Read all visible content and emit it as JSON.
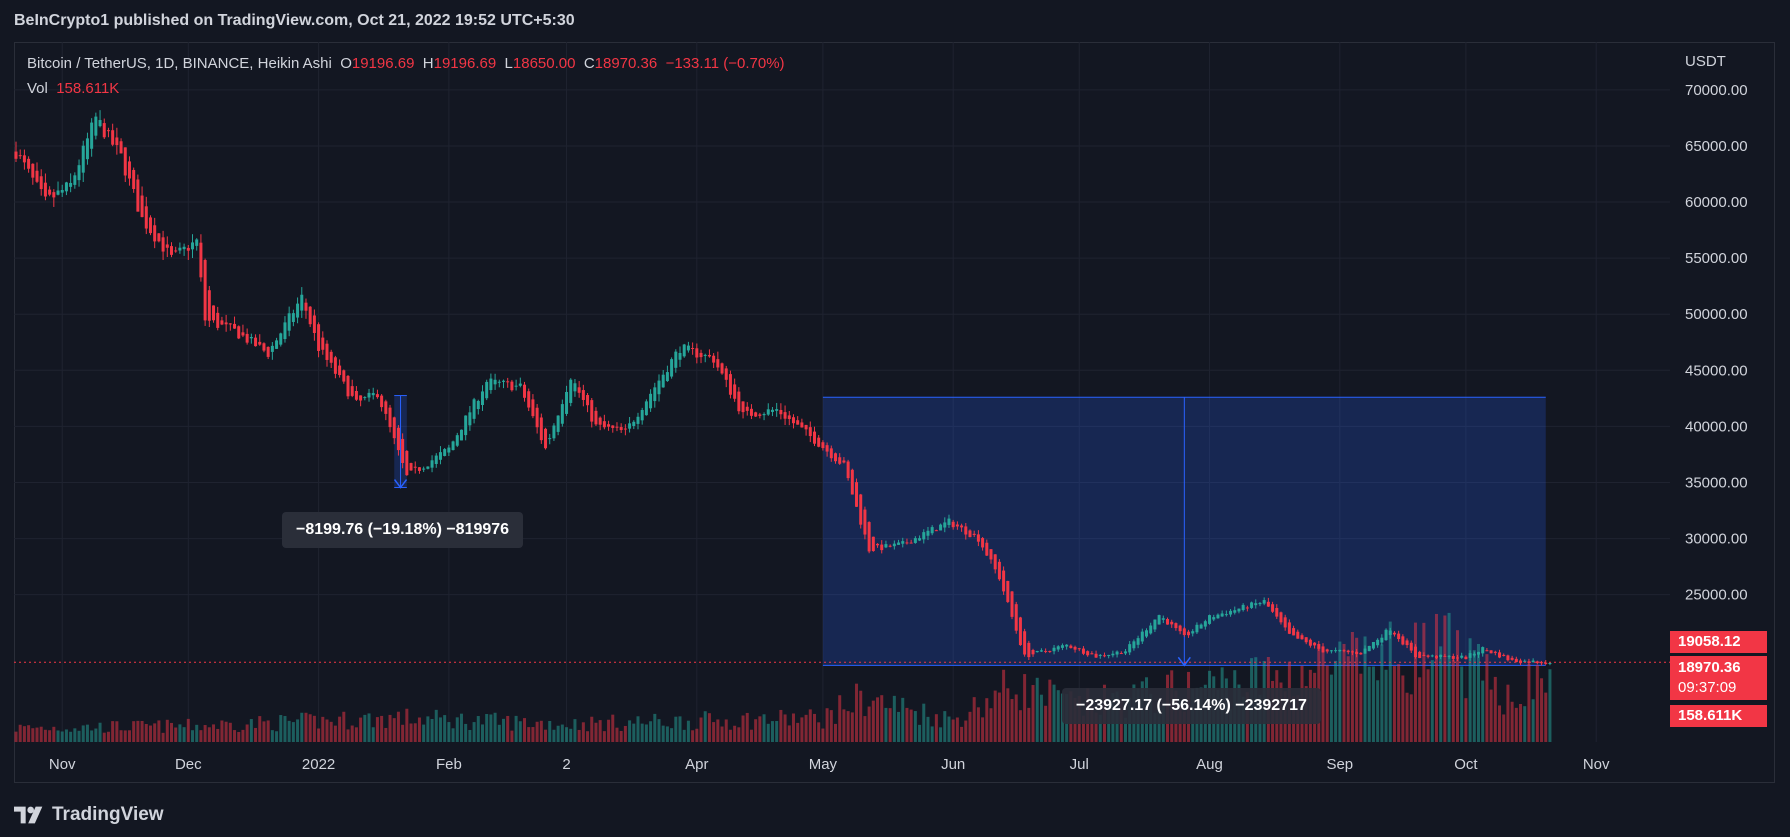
{
  "header": {
    "publisher": "BeInCrypto1 published on TradingView.com, Oct 21, 2022 19:52 UTC+5:30"
  },
  "legend": {
    "symbol": "Bitcoin / TetherUS, 1D, BINANCE, Heikin Ashi",
    "o_label": "O",
    "o_value": "19196.69",
    "h_label": "H",
    "h_value": "19196.69",
    "l_label": "L",
    "l_value": "18650.00",
    "c_label": "C",
    "c_value": "18970.36",
    "change": "−133.11 (−0.70%)",
    "vol_label": "Vol",
    "vol_value": "158.611K"
  },
  "price_tags": {
    "high": "19058.12",
    "close": "18970.36",
    "countdown": "09:37:09",
    "volume": "158.611K"
  },
  "measures": {
    "first": "−8199.76 (−19.18%) −819976",
    "second": "−23927.17 (−56.14%) −2392717"
  },
  "footer": {
    "brand": "TradingView"
  },
  "colors": {
    "background": "#131722",
    "up": "#26a69a",
    "down": "#f23645",
    "measure_fill": "#1e2c5c",
    "measure_line": "#2962ff"
  },
  "chart_data": {
    "type": "candlestick",
    "series_type": "Heikin Ashi",
    "currency_label": "USDT",
    "y_ticks": [
      "70000.00",
      "65000.00",
      "60000.00",
      "55000.00",
      "50000.00",
      "45000.00",
      "40000.00",
      "35000.00",
      "30000.00",
      "25000.00"
    ],
    "y_tick_values": [
      70000,
      65000,
      60000,
      55000,
      50000,
      45000,
      40000,
      35000,
      30000,
      25000
    ],
    "ylim": [
      16500,
      74000
    ],
    "x_ticks": [
      "Nov",
      "Dec",
      "2022",
      "Feb",
      "2",
      "Apr",
      "May",
      "Jun",
      "Jul",
      "Aug",
      "Sep",
      "Oct",
      "Nov"
    ],
    "x_tick_dates": [
      "2021-11-01",
      "2021-12-01",
      "2022-01-01",
      "2022-02-01",
      "2022-03-01",
      "2022-04-01",
      "2022-05-01",
      "2022-06-01",
      "2022-07-01",
      "2022-08-01",
      "2022-09-01",
      "2022-10-01",
      "2022-11-01"
    ],
    "last_close": 18970.36,
    "measure_ranges": [
      {
        "from_date": "2022-01-19",
        "to_date": "2022-01-22",
        "from_price": 42750,
        "to_price": 34550
      },
      {
        "from_date": "2022-05-01",
        "to_date": "2022-10-20",
        "from_price": 42600,
        "to_price": 18700
      }
    ],
    "anchors": [
      [
        "2021-10-21",
        64500
      ],
      [
        "2021-10-28",
        60000
      ],
      [
        "2021-11-03",
        61500
      ],
      [
        "2021-11-09",
        67500
      ],
      [
        "2021-11-15",
        64000
      ],
      [
        "2021-11-20",
        58500
      ],
      [
        "2021-11-27",
        55000
      ],
      [
        "2021-12-03",
        56500
      ],
      [
        "2021-12-05",
        49500
      ],
      [
        "2021-12-12",
        48500
      ],
      [
        "2021-12-20",
        46500
      ],
      [
        "2021-12-28",
        51500
      ],
      [
        "2022-01-01",
        47000
      ],
      [
        "2022-01-10",
        42000
      ],
      [
        "2022-01-15",
        43000
      ],
      [
        "2022-01-22",
        35500
      ],
      [
        "2022-02-01",
        38000
      ],
      [
        "2022-02-10",
        44000
      ],
      [
        "2022-02-18",
        43500
      ],
      [
        "2022-02-24",
        38000
      ],
      [
        "2022-03-02",
        44500
      ],
      [
        "2022-03-08",
        40000
      ],
      [
        "2022-03-15",
        39500
      ],
      [
        "2022-03-28",
        47000
      ],
      [
        "2022-04-05",
        46000
      ],
      [
        "2022-04-12",
        41000
      ],
      [
        "2022-04-20",
        41500
      ],
      [
        "2022-04-30",
        38500
      ],
      [
        "2022-05-06",
        36500
      ],
      [
        "2022-05-12",
        29000
      ],
      [
        "2022-05-20",
        29500
      ],
      [
        "2022-05-31",
        31500
      ],
      [
        "2022-06-07",
        30000
      ],
      [
        "2022-06-12",
        26500
      ],
      [
        "2022-06-18",
        19500
      ],
      [
        "2022-06-28",
        20500
      ],
      [
        "2022-07-05",
        19500
      ],
      [
        "2022-07-12",
        20000
      ],
      [
        "2022-07-20",
        23200
      ],
      [
        "2022-07-26",
        21200
      ],
      [
        "2022-08-01",
        23000
      ],
      [
        "2022-08-14",
        24400
      ],
      [
        "2022-08-20",
        21400
      ],
      [
        "2022-08-28",
        20000
      ],
      [
        "2022-09-06",
        19800
      ],
      [
        "2022-09-13",
        22000
      ],
      [
        "2022-09-19",
        19500
      ],
      [
        "2022-10-01",
        19400
      ],
      [
        "2022-10-05",
        20200
      ],
      [
        "2022-10-12",
        19100
      ],
      [
        "2022-10-21",
        18970
      ]
    ],
    "volume_ylim": [
      0,
      500
    ],
    "volume_anchors": [
      [
        "2021-10-21",
        35
      ],
      [
        "2021-12-01",
        40
      ],
      [
        "2022-01-20",
        60
      ],
      [
        "2022-03-01",
        45
      ],
      [
        "2022-05-01",
        60
      ],
      [
        "2022-05-10",
        110
      ],
      [
        "2022-06-01",
        55
      ],
      [
        "2022-06-15",
        140
      ],
      [
        "2022-07-01",
        90
      ],
      [
        "2022-08-01",
        140
      ],
      [
        "2022-09-01",
        190
      ],
      [
        "2022-09-27",
        230
      ],
      [
        "2022-10-10",
        120
      ],
      [
        "2022-10-21",
        158.611
      ]
    ]
  }
}
